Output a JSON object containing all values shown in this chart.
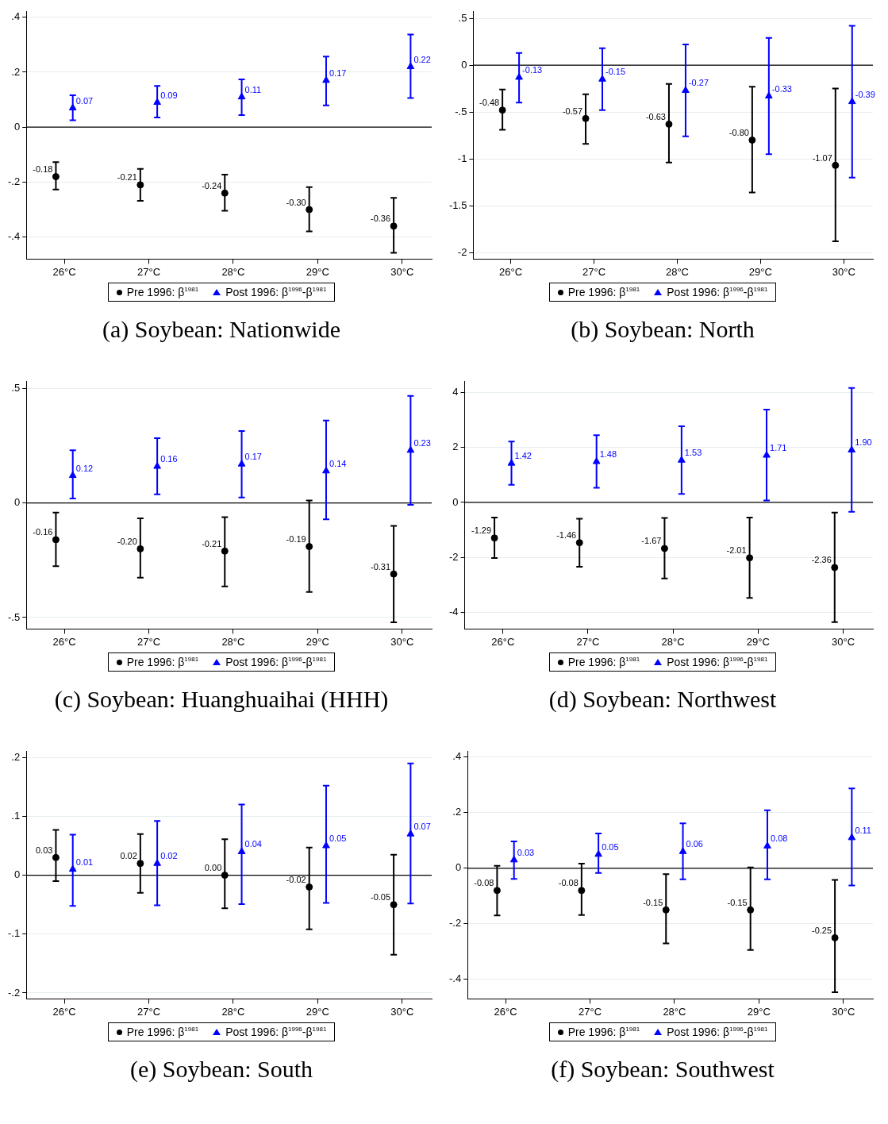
{
  "chart_data": [
    {
      "type": "scatter",
      "title": "(a) Soybean: Nationwide",
      "categories": [
        "26°C",
        "27°C",
        "28°C",
        "29°C",
        "30°C"
      ],
      "ylim": [
        -0.48,
        0.42
      ],
      "yticks": [
        {
          "value": 0.4,
          "label": ".4"
        },
        {
          "value": 0.2,
          "label": ".2"
        },
        0,
        {
          "value": -0.2,
          "label": "-.2"
        },
        {
          "value": -0.4,
          "label": "-.4"
        }
      ],
      "grid": "y",
      "legend": "bottom",
      "ref_lines": [
        {
          "axis": "y",
          "value": 0,
          "color": "#000000"
        }
      ],
      "series": [
        {
          "name": "Pre 1996: β$^{1981}$",
          "color": "#000000",
          "marker": "circle",
          "values": [
            -0.18,
            -0.21,
            -0.24,
            -0.3,
            -0.36
          ],
          "value_labels": [
            "-0.18",
            "-0.21",
            "-0.24",
            "-0.30",
            "-0.36"
          ],
          "errors": [
            [
              -0.227,
              -0.127
            ],
            [
              -0.268,
              -0.152
            ],
            [
              -0.304,
              -0.173
            ],
            [
              -0.379,
              -0.218
            ],
            [
              -0.457,
              -0.257
            ]
          ]
        },
        {
          "name": "Post 1996: β$^{1996}$-β$^{1981}$",
          "color": "#0000ff",
          "marker": "triangle",
          "values": [
            0.07,
            0.09,
            0.11,
            0.17,
            0.22
          ],
          "value_labels": [
            "0.07",
            "0.09",
            "0.11",
            "0.17",
            "0.22"
          ],
          "errors": [
            [
              0.025,
              0.116
            ],
            [
              0.035,
              0.15
            ],
            [
              0.044,
              0.174
            ],
            [
              0.079,
              0.257
            ],
            [
              0.106,
              0.337
            ]
          ]
        }
      ]
    },
    {
      "type": "scatter",
      "title": "(b) Soybean: North",
      "categories": [
        "26°C",
        "27°C",
        "28°C",
        "29°C",
        "30°C"
      ],
      "ylim": [
        -2.07,
        0.57
      ],
      "yticks": [
        {
          "value": 0.5,
          "label": ".5"
        },
        0,
        {
          "value": -0.5,
          "label": "-.5"
        },
        -1,
        -1.5,
        -2
      ],
      "grid": "y",
      "legend": "bottom",
      "ref_lines": [
        {
          "axis": "y",
          "value": 0,
          "color": "#000000"
        }
      ],
      "series": [
        {
          "name": "Pre 1996: β$^{1981}$",
          "color": "#000000",
          "marker": "circle",
          "values": [
            -0.48,
            -0.57,
            -0.63,
            -0.8,
            -1.07
          ],
          "value_labels": [
            "-0.48",
            "-0.57",
            "-0.63",
            "-0.80",
            "-1.07"
          ],
          "errors": [
            [
              -0.69,
              -0.26
            ],
            [
              -0.84,
              -0.31
            ],
            [
              -1.04,
              -0.2
            ],
            [
              -1.36,
              -0.23
            ],
            [
              -1.88,
              -0.25
            ]
          ]
        },
        {
          "name": "Post 1996: β$^{1996}$-β$^{1981}$",
          "color": "#0000ff",
          "marker": "triangle",
          "values": [
            -0.13,
            -0.15,
            -0.27,
            -0.33,
            -0.39
          ],
          "value_labels": [
            "-0.13",
            "-0.15",
            "-0.27",
            "-0.33",
            "-0.39"
          ],
          "errors": [
            [
              -0.4,
              0.13
            ],
            [
              -0.48,
              0.18
            ],
            [
              -0.76,
              0.22
            ],
            [
              -0.95,
              0.29
            ],
            [
              -1.2,
              0.42
            ]
          ]
        }
      ]
    },
    {
      "type": "scatter",
      "title": "(c) Soybean: Huanghuaihai (HHH)",
      "categories": [
        "26°C",
        "27°C",
        "28°C",
        "29°C",
        "30°C"
      ],
      "ylim": [
        -0.55,
        0.53
      ],
      "yticks": [
        {
          "value": 0.5,
          "label": ".5"
        },
        0,
        {
          "value": -0.5,
          "label": "-.5"
        }
      ],
      "grid": "y",
      "legend": "bottom",
      "ref_lines": [
        {
          "axis": "y",
          "value": 0,
          "color": "#000000"
        }
      ],
      "series": [
        {
          "name": "Pre 1996: β$^{1981}$",
          "color": "#000000",
          "marker": "circle",
          "values": [
            -0.16,
            -0.2,
            -0.21,
            -0.19,
            -0.31
          ],
          "value_labels": [
            "-0.16",
            "-0.20",
            "-0.21",
            "-0.19",
            "-0.31"
          ],
          "errors": [
            [
              -0.276,
              -0.042
            ],
            [
              -0.326,
              -0.067
            ],
            [
              -0.364,
              -0.062
            ],
            [
              -0.388,
              0.011
            ],
            [
              -0.521,
              -0.1
            ]
          ]
        },
        {
          "name": "Post 1996: β$^{1996}$-β$^{1981}$",
          "color": "#0000ff",
          "marker": "triangle",
          "values": [
            0.12,
            0.16,
            0.17,
            0.14,
            0.23
          ],
          "value_labels": [
            "0.12",
            "0.16",
            "0.17",
            "0.14",
            "0.23"
          ],
          "errors": [
            [
              0.02,
              0.23
            ],
            [
              0.038,
              0.283
            ],
            [
              0.024,
              0.314
            ],
            [
              -0.071,
              0.36
            ],
            [
              -0.008,
              0.468
            ]
          ]
        }
      ]
    },
    {
      "type": "scatter",
      "title": "(d) Soybean: Northwest",
      "categories": [
        "26°C",
        "27°C",
        "28°C",
        "29°C",
        "30°C"
      ],
      "ylim": [
        -4.59,
        4.38
      ],
      "yticks": [
        4,
        2,
        0,
        -2,
        -4
      ],
      "grid": "y",
      "legend": "bottom",
      "ref_lines": [
        {
          "axis": "y",
          "value": 0,
          "color": "#000000"
        }
      ],
      "series": [
        {
          "name": "Pre 1996: β$^{1981}$",
          "color": "#000000",
          "marker": "circle",
          "values": [
            -1.29,
            -1.46,
            -1.67,
            -2.01,
            -2.36
          ],
          "value_labels": [
            "-1.29",
            "-1.46",
            "-1.67",
            "-2.01",
            "-2.36"
          ],
          "errors": [
            [
              -2.02,
              -0.55
            ],
            [
              -2.33,
              -0.59
            ],
            [
              -2.76,
              -0.56
            ],
            [
              -3.46,
              -0.55
            ],
            [
              -4.34,
              -0.37
            ]
          ]
        },
        {
          "name": "Post 1996: β$^{1996}$-β$^{1981}$",
          "color": "#0000ff",
          "marker": "triangle",
          "values": [
            1.42,
            1.48,
            1.53,
            1.71,
            1.9
          ],
          "value_labels": [
            "1.42",
            "1.48",
            "1.53",
            "1.71",
            "1.90"
          ],
          "errors": [
            [
              0.64,
              2.21
            ],
            [
              0.53,
              2.44
            ],
            [
              0.31,
              2.76
            ],
            [
              0.07,
              3.37
            ],
            [
              -0.34,
              4.15
            ]
          ]
        }
      ]
    },
    {
      "type": "scatter",
      "title": "(e) Soybean: South",
      "categories": [
        "26°C",
        "27°C",
        "28°C",
        "29°C",
        "30°C"
      ],
      "ylim": [
        -0.21,
        0.21
      ],
      "yticks": [
        {
          "value": 0.2,
          "label": ".2"
        },
        {
          "value": 0.1,
          "label": ".1"
        },
        0,
        {
          "value": -0.1,
          "label": "-.1"
        },
        {
          "value": -0.2,
          "label": "-.2"
        }
      ],
      "grid": "y",
      "legend": "bottom",
      "ref_lines": [
        {
          "axis": "y",
          "value": 0,
          "color": "#000000"
        }
      ],
      "series": [
        {
          "name": "Pre 1996: β$^{1981}$",
          "color": "#000000",
          "marker": "circle",
          "values": [
            0.03,
            0.02,
            0.0,
            -0.02,
            -0.05
          ],
          "value_labels": [
            "0.03",
            "0.02",
            "0.00",
            "-0.02",
            "-0.05"
          ],
          "errors": [
            [
              -0.01,
              0.077
            ],
            [
              -0.03,
              0.07
            ],
            [
              -0.056,
              0.061
            ],
            [
              -0.092,
              0.047
            ],
            [
              -0.135,
              0.035
            ]
          ]
        },
        {
          "name": "Post 1996: β$^{1996}$-β$^{1981}$",
          "color": "#0000ff",
          "marker": "triangle",
          "values": [
            0.01,
            0.02,
            0.04,
            0.05,
            0.07
          ],
          "value_labels": [
            "0.01",
            "0.02",
            "0.04",
            "0.05",
            "0.07"
          ],
          "errors": [
            [
              -0.052,
              0.069
            ],
            [
              -0.051,
              0.092
            ],
            [
              -0.049,
              0.12
            ],
            [
              -0.047,
              0.152
            ],
            [
              -0.048,
              0.19
            ]
          ]
        }
      ]
    },
    {
      "type": "scatter",
      "title": "(f) Soybean: Southwest",
      "categories": [
        "26°C",
        "27°C",
        "28°C",
        "29°C",
        "30°C"
      ],
      "ylim": [
        -0.47,
        0.42
      ],
      "yticks": [
        {
          "value": 0.4,
          "label": ".4"
        },
        {
          "value": 0.2,
          "label": ".2"
        },
        0,
        {
          "value": -0.2,
          "label": "-.2"
        },
        {
          "value": -0.4,
          "label": "-.4"
        }
      ],
      "grid": "y",
      "legend": "bottom",
      "ref_lines": [
        {
          "axis": "y",
          "value": 0,
          "color": "#000000"
        }
      ],
      "series": [
        {
          "name": "Pre 1996: β$^{1981}$",
          "color": "#000000",
          "marker": "circle",
          "values": [
            -0.08,
            -0.08,
            -0.15,
            -0.15,
            -0.25
          ],
          "value_labels": [
            "-0.08",
            "-0.08",
            "-0.15",
            "-0.15",
            "-0.25"
          ],
          "errors": [
            [
              -0.17,
              0.009
            ],
            [
              -0.168,
              0.017
            ],
            [
              -0.27,
              -0.021
            ],
            [
              -0.294,
              0.003
            ],
            [
              -0.446,
              -0.042
            ]
          ]
        },
        {
          "name": "Post 1996: β$^{1996}$-β$^{1981}$",
          "color": "#0000ff",
          "marker": "triangle",
          "values": [
            0.03,
            0.05,
            0.06,
            0.08,
            0.11
          ],
          "value_labels": [
            "0.03",
            "0.05",
            "0.06",
            "0.08",
            "0.11"
          ],
          "errors": [
            [
              -0.038,
              0.097
            ],
            [
              -0.017,
              0.125
            ],
            [
              -0.04,
              0.162
            ],
            [
              -0.04,
              0.209
            ],
            [
              -0.062,
              0.287
            ]
          ]
        }
      ]
    }
  ]
}
